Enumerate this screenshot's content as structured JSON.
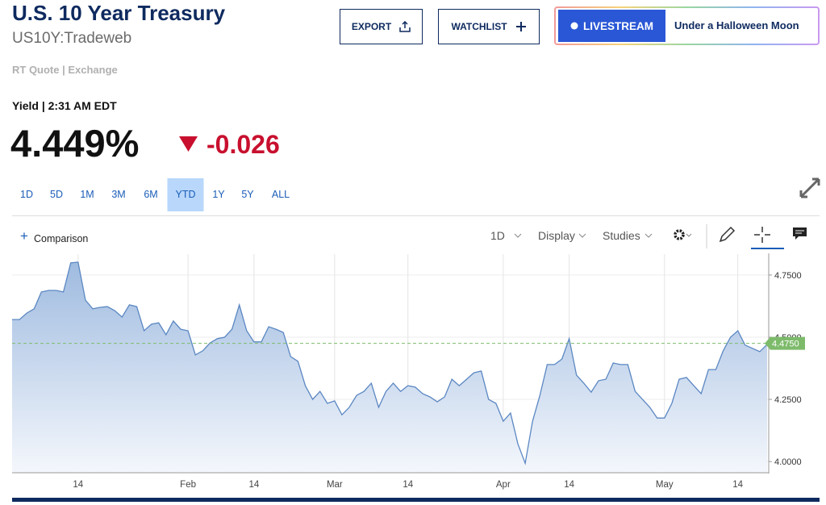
{
  "header": {
    "title": "U.S. 10 Year Treasury",
    "symbol": "US10Y:Tradeweb",
    "quote_source": "RT Quote | Exchange"
  },
  "buttons": {
    "export": "EXPORT",
    "watchlist": "WATCHLIST",
    "livestream": "LIVESTREAM",
    "now_playing": "Under a Halloween Moon"
  },
  "quote": {
    "label": "Yield | 2:31 AM EDT",
    "price": "4.449%",
    "change": "-0.026"
  },
  "ranges": [
    "1D",
    "5D",
    "1M",
    "3M",
    "6M",
    "YTD",
    "1Y",
    "5Y",
    "ALL"
  ],
  "selected_range": "YTD",
  "toolbar": {
    "comparison": "Comparison",
    "interval": "1D",
    "display": "Display",
    "studies": "Studies"
  },
  "chart_data": {
    "type": "area",
    "color": "#5b87c2",
    "categories": [
      null,
      null,
      null,
      null,
      null,
      null,
      null,
      null,
      null,
      "14",
      null,
      null,
      null,
      null,
      null,
      null,
      null,
      null,
      null,
      null,
      null,
      null,
      null,
      null,
      "Feb",
      null,
      null,
      null,
      null,
      null,
      null,
      null,
      null,
      "14",
      null,
      null,
      null,
      null,
      null,
      null,
      null,
      null,
      null,
      null,
      "Mar",
      null,
      null,
      null,
      null,
      null,
      null,
      null,
      null,
      null,
      "14",
      null,
      null,
      null,
      null,
      null,
      null,
      null,
      null,
      null,
      null,
      null,
      null,
      "Apr",
      null,
      null,
      null,
      null,
      null,
      null,
      null,
      null,
      "14",
      null,
      null,
      null,
      null,
      null,
      null,
      null,
      null,
      null,
      null,
      null,
      null,
      "May",
      null,
      null,
      null,
      null,
      null,
      null,
      null,
      null,
      null,
      "14",
      null,
      null,
      null,
      null
    ],
    "values": [
      4.571,
      4.571,
      4.597,
      4.614,
      4.682,
      4.688,
      4.688,
      4.682,
      4.799,
      4.802,
      4.649,
      4.614,
      4.62,
      4.623,
      4.607,
      4.581,
      4.63,
      4.623,
      4.526,
      4.552,
      4.558,
      4.51,
      4.565,
      4.532,
      4.526,
      4.429,
      4.445,
      4.477,
      4.494,
      4.5,
      4.532,
      4.63,
      4.526,
      4.481,
      4.481,
      4.542,
      4.532,
      4.519,
      4.422,
      4.403,
      4.305,
      4.25,
      4.282,
      4.234,
      4.244,
      4.188,
      4.218,
      4.266,
      4.282,
      4.315,
      4.218,
      4.282,
      4.315,
      4.282,
      4.305,
      4.299,
      4.273,
      4.26,
      4.24,
      4.26,
      4.331,
      4.305,
      4.331,
      4.357,
      4.364,
      4.25,
      4.234,
      4.162,
      4.195,
      4.071,
      3.993,
      4.162,
      4.266,
      4.39,
      4.39,
      4.412,
      4.494,
      4.347,
      4.315,
      4.279,
      4.325,
      4.331,
      4.396,
      4.39,
      4.39,
      4.282,
      4.25,
      4.218,
      4.175,
      4.175,
      4.234,
      4.331,
      4.338,
      4.305,
      4.273,
      4.37,
      4.37,
      4.445,
      4.5,
      4.526,
      4.468,
      4.455,
      4.442,
      4.471
    ],
    "ylim": [
      3.955,
      4.834
    ],
    "yticks": [
      {
        "value": 4.0,
        "label": "4.0000"
      },
      {
        "value": 4.25,
        "label": "4.2500"
      },
      {
        "value": 4.5,
        "label": "4.5000"
      },
      {
        "value": 4.75,
        "label": "4.7500"
      }
    ],
    "reference_line": {
      "value": 4.475,
      "label": "4.4750",
      "color": "#7dbb6b"
    },
    "grid": true
  }
}
